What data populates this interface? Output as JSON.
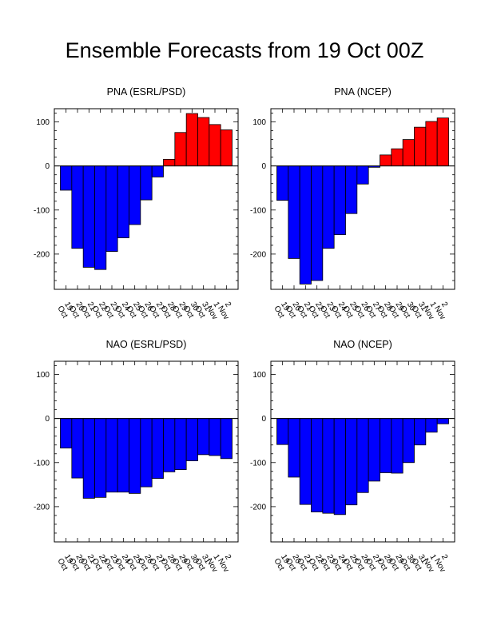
{
  "title": "Ensemble Forecasts from 19 Oct 00Z",
  "chart_data": [
    {
      "type": "bar",
      "title": "PNA (ESRL/PSD)",
      "categories": [
        "19 Oct",
        "20 Oct",
        "21 Oct",
        "22 Oct",
        "23 Oct",
        "24 Oct",
        "25 Oct",
        "26 Oct",
        "27 Oct",
        "28 Oct",
        "29 Oct",
        "30 Oct",
        "31 Oct",
        "1 Nov",
        "2 Nov"
      ],
      "values": [
        -55,
        -187,
        -230,
        -235,
        -194,
        -163,
        -133,
        -77,
        -25,
        15,
        76,
        119,
        110,
        94,
        82
      ],
      "ylim": [
        -280,
        130
      ],
      "yticks": [
        -200,
        -100,
        0,
        100
      ],
      "positive_color": "#ff0000",
      "negative_color": "#0000ff"
    },
    {
      "type": "bar",
      "title": "PNA (NCEP)",
      "categories": [
        "19 Oct",
        "20 Oct",
        "21 Oct",
        "22 Oct",
        "23 Oct",
        "24 Oct",
        "25 Oct",
        "26 Oct",
        "27 Oct",
        "28 Oct",
        "29 Oct",
        "30 Oct",
        "31 Oct",
        "1 Nov",
        "2 Nov"
      ],
      "values": [
        -78,
        -210,
        -268,
        -260,
        -187,
        -156,
        -108,
        -41,
        -3,
        25,
        39,
        60,
        88,
        101,
        109
      ],
      "ylim": [
        -280,
        130
      ],
      "yticks": [
        -200,
        -100,
        0,
        100
      ],
      "positive_color": "#ff0000",
      "negative_color": "#0000ff"
    },
    {
      "type": "bar",
      "title": "NAO (ESRL/PSD)",
      "categories": [
        "19 Oct",
        "20 Oct",
        "21 Oct",
        "22 Oct",
        "23 Oct",
        "24 Oct",
        "25 Oct",
        "26 Oct",
        "27 Oct",
        "28 Oct",
        "29 Oct",
        "30 Oct",
        "31 Oct",
        "1 Nov",
        "2 Nov"
      ],
      "values": [
        -67,
        -135,
        -181,
        -179,
        -167,
        -167,
        -170,
        -155,
        -136,
        -121,
        -116,
        -96,
        -82,
        -84,
        -91
      ],
      "ylim": [
        -280,
        130
      ],
      "yticks": [
        -200,
        -100,
        0,
        100
      ],
      "positive_color": "#ff0000",
      "negative_color": "#0000ff"
    },
    {
      "type": "bar",
      "title": "NAO (NCEP)",
      "categories": [
        "19 Oct",
        "20 Oct",
        "21 Oct",
        "22 Oct",
        "23 Oct",
        "24 Oct",
        "25 Oct",
        "26 Oct",
        "27 Oct",
        "28 Oct",
        "29 Oct",
        "30 Oct",
        "31 Oct",
        "1 Nov",
        "2 Nov"
      ],
      "values": [
        -59,
        -133,
        -195,
        -212,
        -215,
        -218,
        -196,
        -168,
        -142,
        -123,
        -124,
        -100,
        -60,
        -31,
        -12
      ],
      "ylim": [
        -280,
        130
      ],
      "yticks": [
        -200,
        -100,
        0,
        100
      ],
      "positive_color": "#ff0000",
      "negative_color": "#0000ff"
    }
  ]
}
